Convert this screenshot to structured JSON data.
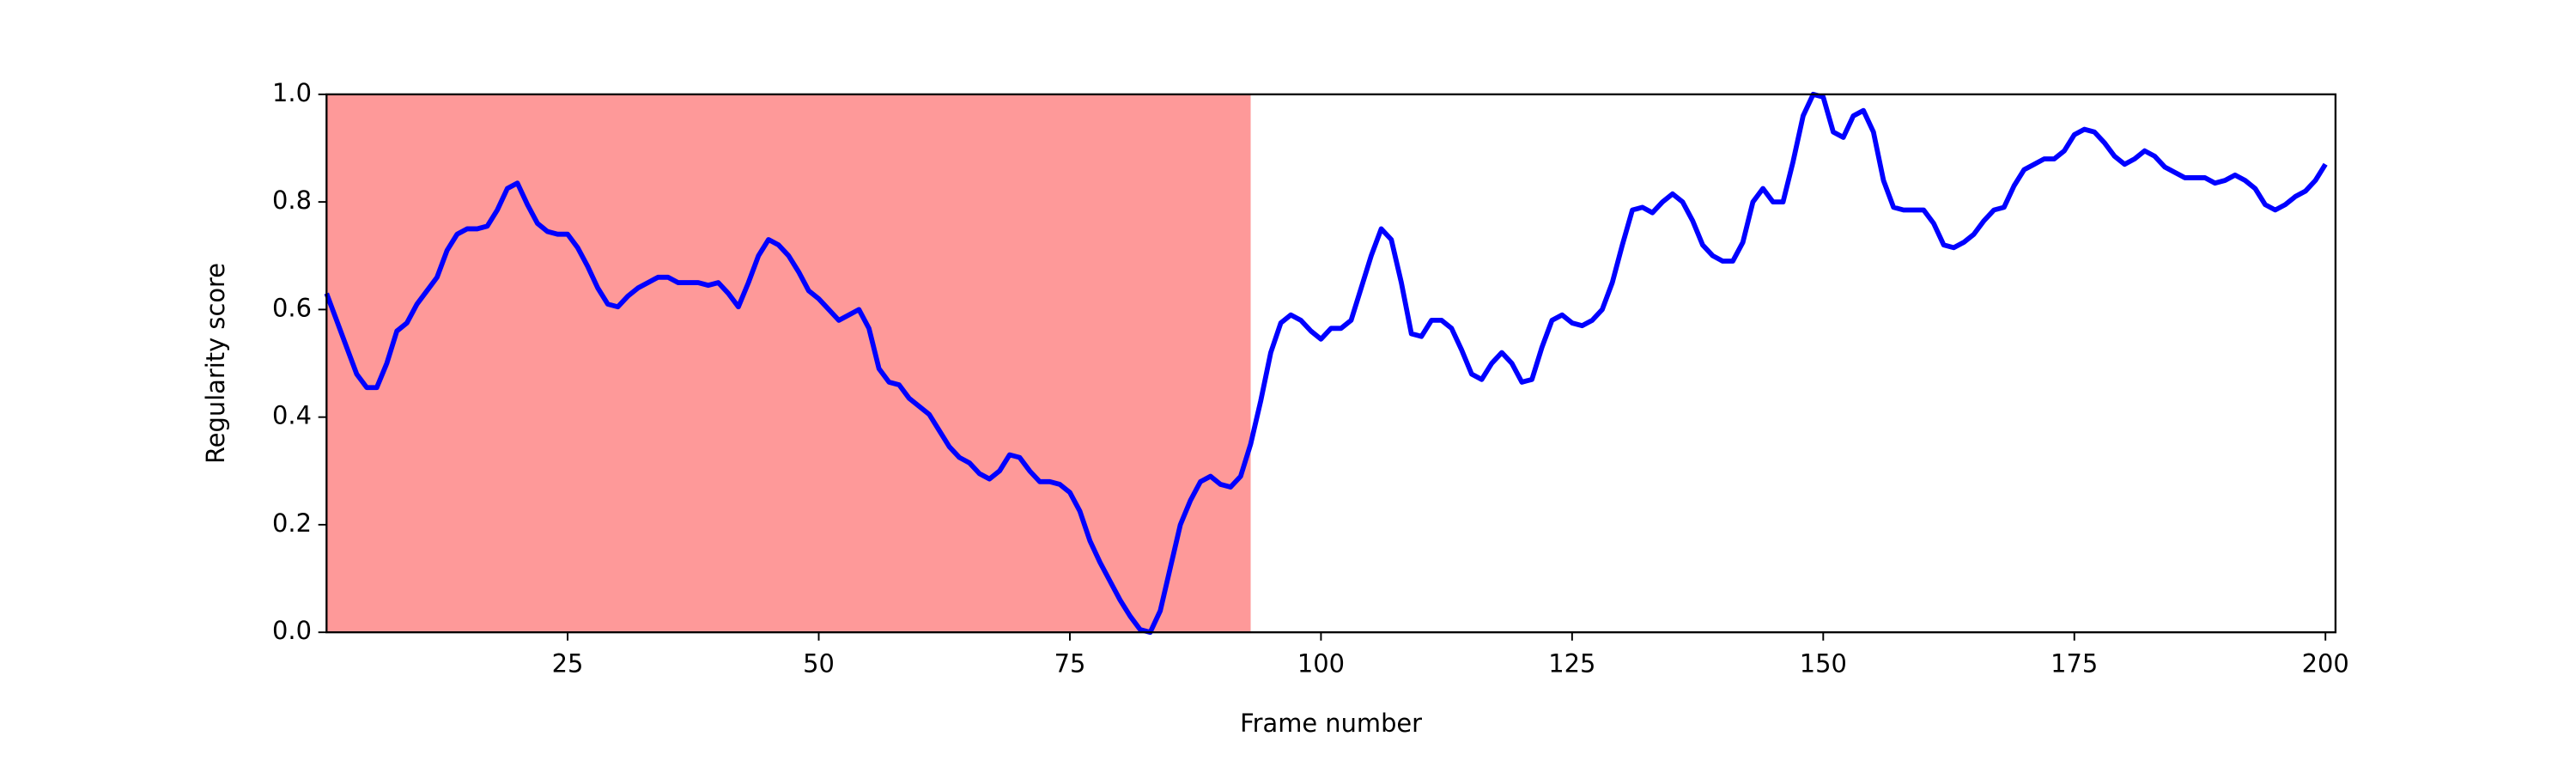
{
  "chart_data": {
    "type": "line",
    "x_label": "Frame number",
    "y_label": "Regularity score",
    "highlight": {
      "start": 1,
      "end": 93,
      "color": "#fe9999"
    },
    "xlim": [
      1,
      201
    ],
    "ylim": [
      0,
      1
    ],
    "xticks": [
      25,
      50,
      75,
      100,
      125,
      150,
      175,
      200
    ],
    "yticks": [
      {
        "value": 0,
        "label": "0.0"
      },
      {
        "value": 0.2,
        "label": "0.2"
      },
      {
        "value": 0.4,
        "label": "0.4"
      },
      {
        "value": 0.6,
        "label": "0.6"
      },
      {
        "value": 0.8,
        "label": "0.8"
      },
      {
        "value": 1,
        "label": "1.0"
      }
    ],
    "grid": false,
    "x": [
      1,
      2,
      3,
      4,
      5,
      6,
      7,
      8,
      9,
      10,
      11,
      12,
      13,
      14,
      15,
      16,
      17,
      18,
      19,
      20,
      21,
      22,
      23,
      24,
      25,
      26,
      27,
      28,
      29,
      30,
      31,
      32,
      33,
      34,
      35,
      36,
      37,
      38,
      39,
      40,
      41,
      42,
      43,
      44,
      45,
      46,
      47,
      48,
      49,
      50,
      51,
      52,
      53,
      54,
      55,
      56,
      57,
      58,
      59,
      60,
      61,
      62,
      63,
      64,
      65,
      66,
      67,
      68,
      69,
      70,
      71,
      72,
      73,
      74,
      75,
      76,
      77,
      78,
      79,
      80,
      81,
      82,
      83,
      84,
      85,
      86,
      87,
      88,
      89,
      90,
      91,
      92,
      93,
      94,
      95,
      96,
      97,
      98,
      99,
      100,
      101,
      102,
      103,
      104,
      105,
      106,
      107,
      108,
      109,
      110,
      111,
      112,
      113,
      114,
      115,
      116,
      117,
      118,
      119,
      120,
      121,
      122,
      123,
      124,
      125,
      126,
      127,
      128,
      129,
      130,
      131,
      132,
      133,
      134,
      135,
      136,
      137,
      138,
      139,
      140,
      141,
      142,
      143,
      144,
      145,
      146,
      147,
      148,
      149,
      150,
      151,
      152,
      153,
      154,
      155,
      156,
      157,
      158,
      159,
      160,
      161,
      162,
      163,
      164,
      165,
      166,
      167,
      168,
      169,
      170,
      171,
      172,
      173,
      174,
      175,
      176,
      177,
      178,
      179,
      180,
      181,
      182,
      183,
      184,
      185,
      186,
      187,
      188,
      189,
      190,
      191,
      192,
      193,
      194,
      195,
      196,
      197,
      198,
      199,
      200
    ],
    "series": [
      {
        "color": "#0000ff",
        "values": [
          0.63,
          0.58,
          0.53,
          0.48,
          0.455,
          0.455,
          0.5,
          0.56,
          0.575,
          0.61,
          0.635,
          0.66,
          0.71,
          0.74,
          0.75,
          0.75,
          0.755,
          0.785,
          0.825,
          0.835,
          0.795,
          0.76,
          0.745,
          0.74,
          0.74,
          0.715,
          0.68,
          0.64,
          0.61,
          0.605,
          0.625,
          0.64,
          0.65,
          0.66,
          0.66,
          0.65,
          0.65,
          0.65,
          0.645,
          0.65,
          0.63,
          0.605,
          0.65,
          0.7,
          0.73,
          0.72,
          0.7,
          0.67,
          0.635,
          0.62,
          0.6,
          0.58,
          0.59,
          0.6,
          0.565,
          0.49,
          0.465,
          0.46,
          0.435,
          0.42,
          0.405,
          0.375,
          0.345,
          0.325,
          0.315,
          0.295,
          0.285,
          0.3,
          0.33,
          0.325,
          0.3,
          0.28,
          0.28,
          0.275,
          0.26,
          0.225,
          0.17,
          0.13,
          0.095,
          0.06,
          0.03,
          0.005,
          0.0,
          0.04,
          0.12,
          0.2,
          0.245,
          0.28,
          0.29,
          0.275,
          0.27,
          0.29,
          0.35,
          0.43,
          0.52,
          0.575,
          0.59,
          0.58,
          0.56,
          0.545,
          0.565,
          0.565,
          0.58,
          0.64,
          0.7,
          0.75,
          0.73,
          0.65,
          0.555,
          0.55,
          0.58,
          0.58,
          0.565,
          0.525,
          0.48,
          0.47,
          0.5,
          0.52,
          0.5,
          0.465,
          0.47,
          0.53,
          0.58,
          0.59,
          0.575,
          0.57,
          0.58,
          0.6,
          0.65,
          0.72,
          0.785,
          0.79,
          0.78,
          0.8,
          0.815,
          0.8,
          0.765,
          0.72,
          0.7,
          0.69,
          0.69,
          0.725,
          0.8,
          0.825,
          0.8,
          0.8,
          0.875,
          0.96,
          1.0,
          0.995,
          0.93,
          0.92,
          0.96,
          0.97,
          0.93,
          0.84,
          0.79,
          0.785,
          0.785,
          0.785,
          0.76,
          0.72,
          0.715,
          0.725,
          0.74,
          0.765,
          0.785,
          0.79,
          0.83,
          0.86,
          0.87,
          0.88,
          0.88,
          0.895,
          0.925,
          0.935,
          0.93,
          0.91,
          0.885,
          0.87,
          0.88,
          0.895,
          0.885,
          0.865,
          0.855,
          0.845,
          0.845,
          0.845,
          0.835,
          0.84,
          0.85,
          0.84,
          0.825,
          0.795,
          0.785,
          0.795,
          0.81,
          0.82,
          0.84,
          0.87
        ]
      }
    ]
  }
}
